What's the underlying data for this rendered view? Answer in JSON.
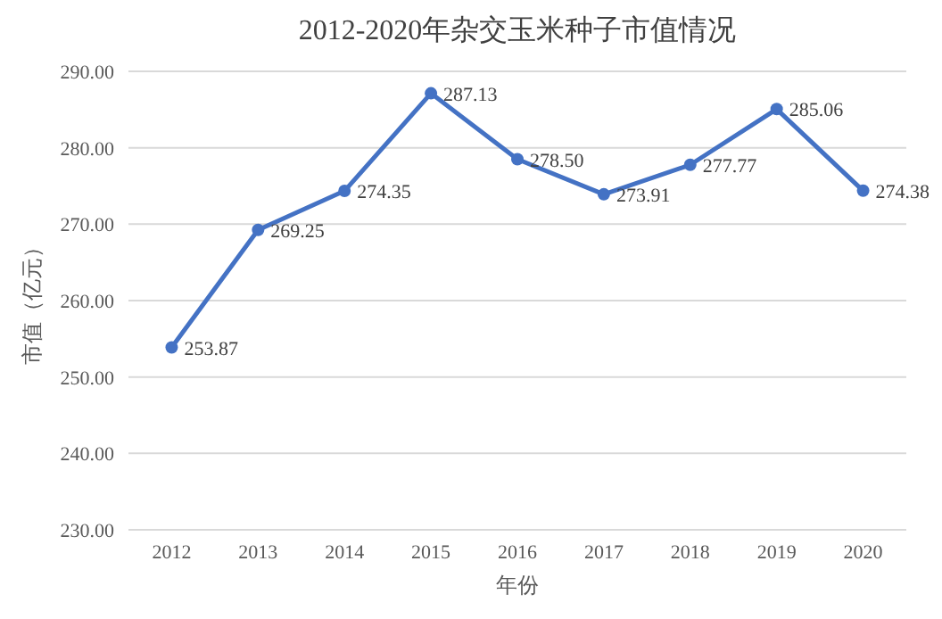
{
  "chart_data": {
    "type": "line",
    "title": "2012-2020年杂交玉米种子市值情况",
    "xlabel": "年份",
    "ylabel": "市值（亿元）",
    "categories": [
      "2012",
      "2013",
      "2014",
      "2015",
      "2016",
      "2017",
      "2018",
      "2019",
      "2020"
    ],
    "series": [
      {
        "color": "#4472c4",
        "values": [
          253.87,
          269.25,
          274.35,
          287.13,
          278.5,
          273.91,
          277.77,
          285.06,
          274.38
        ],
        "value_labels": [
          "253.87",
          "269.25",
          "274.35",
          "287.13",
          "278.50",
          "273.91",
          "277.77",
          "285.06",
          "274.38"
        ]
      }
    ],
    "ylim": [
      230,
      290
    ],
    "yticks": [
      {
        "value": 230,
        "label": "230.00"
      },
      {
        "value": 240,
        "label": "240.00"
      },
      {
        "value": 250,
        "label": "250.00"
      },
      {
        "value": 260,
        "label": "260.00"
      },
      {
        "value": 270,
        "label": "270.00"
      },
      {
        "value": 280,
        "label": "280.00"
      },
      {
        "value": 290,
        "label": "290.00"
      }
    ],
    "grid": "y",
    "marker": "circle",
    "line_style": "solid"
  }
}
